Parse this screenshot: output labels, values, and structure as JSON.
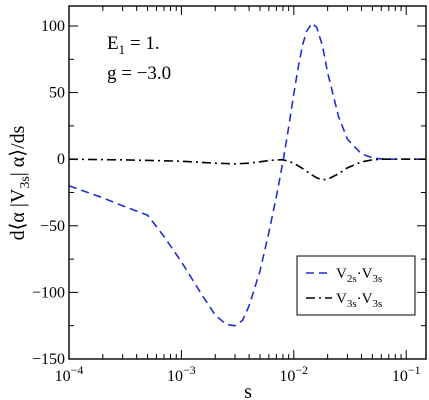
{
  "chart_data": {
    "type": "line",
    "xscale": "log",
    "xlim": [
      0.0001,
      0.15
    ],
    "ylim": [
      -150,
      115
    ],
    "xlabel": "s",
    "ylabel": "d⟨α |V3s| α⟩/ds",
    "ylabel_parts": {
      "pre": "d⟨α |V",
      "sub": "3s",
      "post": "| α⟩/ds"
    },
    "grid": false,
    "legend_position": "bottom-right",
    "x_ticks": [
      {
        "value": 0.0001,
        "base": "10",
        "exp": "-4"
      },
      {
        "value": 0.001,
        "base": "10",
        "exp": "-3"
      },
      {
        "value": 0.01,
        "base": "10",
        "exp": "-2"
      },
      {
        "value": 0.1,
        "base": "10",
        "exp": "-1"
      }
    ],
    "y_ticks": [
      -150,
      -100,
      -50,
      0,
      50,
      100
    ],
    "annotations": {
      "line1": {
        "main": "E",
        "sub": "1",
        "rest": " = 1."
      },
      "line2": "g = −3.0"
    },
    "series": [
      {
        "name": "V2s·V3s",
        "legend": {
          "a": "V",
          "a_sub": "2s",
          "dot": "·",
          "b": "V",
          "b_sub": "3s"
        },
        "color": "#1f2fd6",
        "style": "dashed",
        "x": [
          0.0001,
          0.0002,
          0.0003,
          0.0005,
          0.0007,
          0.001,
          0.0015,
          0.002,
          0.0025,
          0.003,
          0.0035,
          0.004,
          0.005,
          0.006,
          0.007,
          0.008,
          0.009,
          0.01,
          0.011,
          0.012,
          0.013,
          0.0145,
          0.016,
          0.018,
          0.02,
          0.025,
          0.03,
          0.04,
          0.05,
          0.06,
          0.08,
          0.1,
          0.15
        ],
        "y": [
          -20,
          -29,
          -35,
          -42,
          -58,
          -77,
          -101,
          -117,
          -124,
          -125,
          -121,
          -110,
          -84,
          -55,
          -28,
          -2,
          24,
          49,
          70,
          86,
          96,
          102,
          99,
          85,
          65,
          32,
          15,
          4,
          1,
          0.2,
          0,
          0,
          0
        ]
      },
      {
        "name": "V3s·V3s",
        "legend": {
          "a": "V",
          "a_sub": "3s",
          "dot": "·",
          "b": "V",
          "b_sub": "3s"
        },
        "color": "#000000",
        "style": "dashdot",
        "x": [
          0.0001,
          0.0003,
          0.001,
          0.002,
          0.003,
          0.004,
          0.005,
          0.006,
          0.007,
          0.008,
          0.009,
          0.01,
          0.012,
          0.014,
          0.016,
          0.018,
          0.02,
          0.025,
          0.03,
          0.04,
          0.05,
          0.06,
          0.08,
          0.1,
          0.15
        ],
        "y": [
          0,
          -0.5,
          -1.5,
          -3,
          -3.5,
          -3,
          -2,
          -1,
          -0.5,
          -0.5,
          -1.5,
          -3,
          -7,
          -11,
          -14,
          -15.5,
          -15,
          -11,
          -6.5,
          -2,
          -0.5,
          0,
          0,
          0,
          0
        ]
      }
    ]
  }
}
